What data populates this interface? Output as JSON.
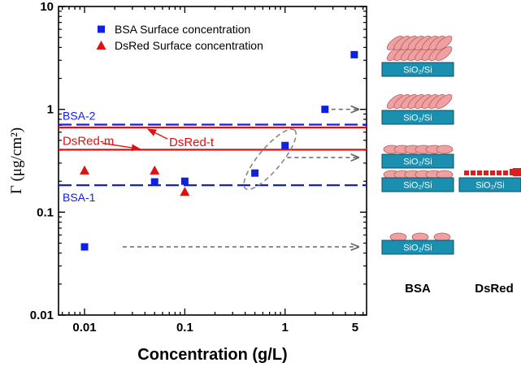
{
  "chart_data": {
    "type": "scatter",
    "xlabel": "Concentration (g/L)",
    "ylabel": "Γ (μg/cm²)",
    "xscale": "log",
    "yscale": "log",
    "xlim": [
      0.0055,
      6.5
    ],
    "ylim": [
      0.01,
      10
    ],
    "xticks": [
      0.01,
      0.1,
      1,
      5
    ],
    "xtick_labels": [
      "0.01",
      "0.1",
      "1",
      "5"
    ],
    "yticks": [
      0.01,
      0.1,
      1,
      10
    ],
    "ytick_labels": [
      "0.01",
      "0.1",
      "1",
      "10"
    ],
    "legend": {
      "placement": "top-left",
      "entries": [
        {
          "label": "BSA Surface concentration",
          "marker": "square",
          "color": "#1020e0"
        },
        {
          "label": "DsRed Surface concentration",
          "marker": "triangle",
          "color": "#e01010"
        }
      ]
    },
    "series": [
      {
        "name": "BSA Surface concentration",
        "marker": "square",
        "color": "#1020e0",
        "points": [
          {
            "x": 0.01,
            "y": 0.046
          },
          {
            "x": 0.05,
            "y": 0.197
          },
          {
            "x": 0.1,
            "y": 0.2
          },
          {
            "x": 0.5,
            "y": 0.24
          },
          {
            "x": 1,
            "y": 0.445
          },
          {
            "x": 2.5,
            "y": 1.0
          },
          {
            "x": 4.9,
            "y": 3.4
          }
        ]
      },
      {
        "name": "DsRed Surface concentration",
        "marker": "triangle",
        "color": "#e01010",
        "points": [
          {
            "x": 0.01,
            "y": 0.255
          },
          {
            "x": 0.05,
            "y": 0.255
          },
          {
            "x": 0.1,
            "y": 0.158
          }
        ]
      }
    ],
    "reference_lines": [
      {
        "label": "BSA-2",
        "y": 0.71,
        "style": "dashed",
        "color": "#1020e0"
      },
      {
        "label": "BSA-1",
        "y": 0.183,
        "style": "dashed",
        "color": "#1020e0"
      },
      {
        "label": "DsRed-t",
        "y": 0.665,
        "style": "solid",
        "color": "#e01010"
      },
      {
        "label": "DsRed-m",
        "y": 0.405,
        "style": "solid",
        "color": "#e01010"
      }
    ],
    "annotations": {
      "ellipse_around": [
        {
          "x": 0.5,
          "y": 0.24
        },
        {
          "x": 1,
          "y": 0.445
        }
      ],
      "arrows": [
        {
          "from_x": 0.024,
          "y": 0.046
        },
        {
          "from_x": 1.05,
          "y": 0.34
        },
        {
          "from_x": 2.9,
          "y": 1.0
        }
      ]
    },
    "grid": false
  },
  "illustration": {
    "substrate_label": "SiO₂/Si",
    "bsa_title": "BSA",
    "dsred_title": "DsRed",
    "colors": {
      "substrate": "#1a8fb0",
      "substrate_edge": "#0d4f66",
      "bsa_molecule": "#f0a0a0",
      "bsa_edge": "#b06060",
      "dsred_molecule": "#d82020"
    }
  }
}
